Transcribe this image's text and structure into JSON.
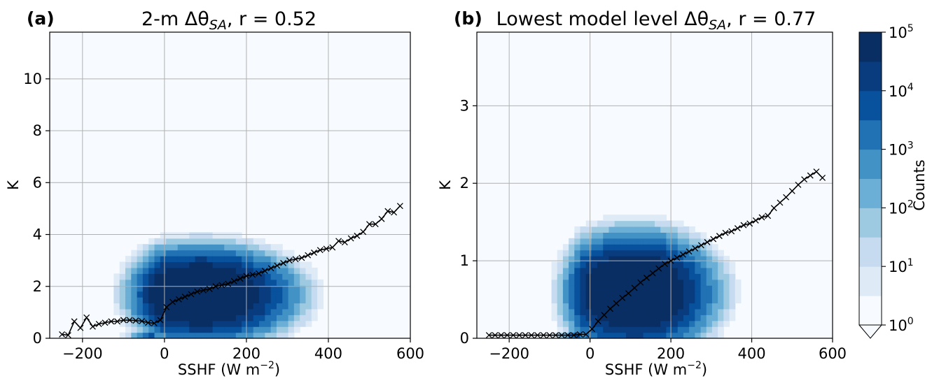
{
  "chart_data": [
    {
      "type": "heatmap",
      "panel_label": "(a)",
      "title": "2-m Δθ",
      "title_sub": "SA",
      "title_r": ", r = 0.52",
      "xlabel": "SSHF (W m",
      "xlabel_sup": "−2",
      "xlabel_end": ")",
      "ylabel": "K",
      "xlim": [
        -280,
        600
      ],
      "ylim": [
        0,
        11.8
      ],
      "xticks": [
        -200,
        0,
        200,
        400,
        600
      ],
      "xtick_labels": [
        "−200",
        "0",
        "200",
        "400",
        "600"
      ],
      "yticks": [
        0,
        2,
        4,
        6,
        8,
        10
      ],
      "yticks_labels": [
        "0",
        "2",
        "4",
        "6",
        "8",
        "10"
      ],
      "grid": true,
      "density_peak": {
        "x": 90,
        "y": 1.7,
        "sx": 150,
        "sy": 1.2,
        "log10max": 5.2
      },
      "binned_mean": {
        "name": "binned mean",
        "x": [
          -250,
          -235,
          -220,
          -205,
          -190,
          -175,
          -160,
          -145,
          -130,
          -115,
          -100,
          -85,
          -70,
          -55,
          -40,
          -25,
          -10,
          5,
          20,
          35,
          50,
          65,
          80,
          95,
          110,
          125,
          140,
          155,
          170,
          185,
          200,
          215,
          230,
          245,
          260,
          275,
          290,
          305,
          320,
          335,
          350,
          365,
          380,
          395,
          410,
          425,
          440,
          455,
          470,
          485,
          500,
          515,
          530,
          545,
          560,
          575
        ],
        "y": [
          0.15,
          0.12,
          0.65,
          0.4,
          0.8,
          0.45,
          0.55,
          0.6,
          0.65,
          0.65,
          0.7,
          0.7,
          0.68,
          0.66,
          0.6,
          0.58,
          0.7,
          1.2,
          1.4,
          1.5,
          1.6,
          1.7,
          1.8,
          1.85,
          1.9,
          2.0,
          2.05,
          2.1,
          2.2,
          2.3,
          2.4,
          2.45,
          2.5,
          2.6,
          2.7,
          2.8,
          2.9,
          3.0,
          3.05,
          3.1,
          3.2,
          3.3,
          3.4,
          3.45,
          3.5,
          3.75,
          3.7,
          3.85,
          3.95,
          4.1,
          4.4,
          4.4,
          4.6,
          4.9,
          4.85,
          5.1
        ]
      }
    },
    {
      "type": "heatmap",
      "panel_label": "(b)",
      "title": "Lowest model level Δθ",
      "title_sub": "SA",
      "title_r": ", r = 0.77",
      "xlabel": "SSHF (W m",
      "xlabel_sup": "−2",
      "xlabel_end": ")",
      "ylabel": "K",
      "xlim": [
        -280,
        600
      ],
      "ylim": [
        0,
        3.95
      ],
      "xticks": [
        -200,
        0,
        200,
        400,
        600
      ],
      "xtick_labels": [
        "−200",
        "0",
        "200",
        "400",
        "600"
      ],
      "yticks": [
        0,
        1,
        2,
        3
      ],
      "yticks_labels": [
        "0",
        "1",
        "2",
        "3"
      ],
      "grid": true,
      "density_peak": {
        "x": 110,
        "y": 0.6,
        "sx": 130,
        "sy": 0.5,
        "log10max": 5.2
      },
      "binned_mean": {
        "name": "binned mean",
        "x": [
          -250,
          -235,
          -220,
          -205,
          -190,
          -175,
          -160,
          -145,
          -130,
          -115,
          -100,
          -85,
          -70,
          -55,
          -40,
          -25,
          -10,
          5,
          20,
          35,
          50,
          65,
          80,
          95,
          110,
          125,
          140,
          155,
          170,
          185,
          200,
          215,
          230,
          245,
          260,
          275,
          290,
          305,
          320,
          335,
          350,
          365,
          380,
          395,
          410,
          425,
          440,
          455,
          470,
          485,
          500,
          515,
          530,
          545,
          560,
          575
        ],
        "y": [
          0.04,
          0.04,
          0.04,
          0.04,
          0.04,
          0.04,
          0.04,
          0.04,
          0.04,
          0.04,
          0.04,
          0.04,
          0.04,
          0.04,
          0.04,
          0.05,
          0.05,
          0.12,
          0.22,
          0.3,
          0.38,
          0.45,
          0.52,
          0.58,
          0.65,
          0.72,
          0.78,
          0.84,
          0.9,
          0.96,
          1.0,
          1.04,
          1.08,
          1.12,
          1.16,
          1.2,
          1.24,
          1.28,
          1.32,
          1.36,
          1.38,
          1.42,
          1.46,
          1.48,
          1.52,
          1.56,
          1.58,
          1.68,
          1.75,
          1.82,
          1.9,
          1.98,
          2.05,
          2.1,
          2.15,
          2.07
        ]
      }
    }
  ],
  "colorbar": {
    "label": "Counts",
    "tick_base": "10",
    "tick_exponents": [
      "0",
      "1",
      "2",
      "3",
      "4",
      "5"
    ],
    "colors": [
      "#f7fbff",
      "#deebf7",
      "#c6dbef",
      "#9ecae1",
      "#6baed6",
      "#4292c6",
      "#2171b5",
      "#08519c",
      "#083c7e",
      "#082e63"
    ]
  }
}
